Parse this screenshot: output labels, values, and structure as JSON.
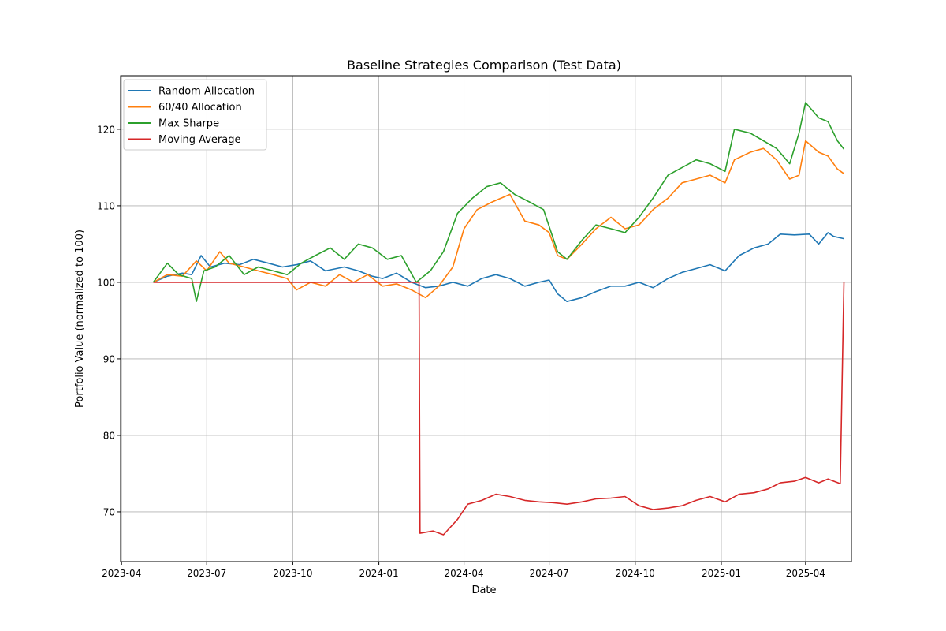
{
  "chart_data": {
    "type": "line",
    "title": "Baseline Strategies Comparison (Test Data)",
    "xlabel": "Date",
    "ylabel": "Portfolio Value (normalized to 100)",
    "xlim": [
      "2023-03-31",
      "2025-05-20"
    ],
    "ylim": [
      63.5,
      127
    ],
    "x_ticks": [
      "2023-04",
      "2023-07",
      "2023-10",
      "2024-01",
      "2024-04",
      "2024-07",
      "2024-10",
      "2025-01",
      "2025-04"
    ],
    "y_ticks": [
      70,
      80,
      90,
      100,
      110,
      120
    ],
    "grid": true,
    "legend": "upper-left",
    "series": [
      {
        "name": "Random Allocation",
        "color": "#1f77b4",
        "points": [
          [
            "2023-05-05",
            100.0
          ],
          [
            "2023-05-20",
            100.8
          ],
          [
            "2023-06-05",
            101.2
          ],
          [
            "2023-06-15",
            101.0
          ],
          [
            "2023-06-25",
            103.5
          ],
          [
            "2023-07-05",
            102.0
          ],
          [
            "2023-07-20",
            102.5
          ],
          [
            "2023-08-05",
            102.3
          ],
          [
            "2023-08-20",
            103.0
          ],
          [
            "2023-09-05",
            102.5
          ],
          [
            "2023-09-20",
            102.0
          ],
          [
            "2023-10-05",
            102.3
          ],
          [
            "2023-10-20",
            102.8
          ],
          [
            "2023-11-05",
            101.5
          ],
          [
            "2023-11-25",
            102.0
          ],
          [
            "2023-12-10",
            101.5
          ],
          [
            "2023-12-25",
            100.8
          ],
          [
            "2024-01-05",
            100.5
          ],
          [
            "2024-01-20",
            101.2
          ],
          [
            "2024-02-05",
            100.0
          ],
          [
            "2024-02-20",
            99.3
          ],
          [
            "2024-03-05",
            99.5
          ],
          [
            "2024-03-20",
            100.0
          ],
          [
            "2024-04-05",
            99.5
          ],
          [
            "2024-04-20",
            100.5
          ],
          [
            "2024-05-05",
            101.0
          ],
          [
            "2024-05-20",
            100.5
          ],
          [
            "2024-06-05",
            99.5
          ],
          [
            "2024-06-20",
            100.0
          ],
          [
            "2024-07-01",
            100.3
          ],
          [
            "2024-07-10",
            98.5
          ],
          [
            "2024-07-20",
            97.5
          ],
          [
            "2024-08-05",
            98.0
          ],
          [
            "2024-08-20",
            98.8
          ],
          [
            "2024-09-05",
            99.5
          ],
          [
            "2024-09-20",
            99.5
          ],
          [
            "2024-10-05",
            100.0
          ],
          [
            "2024-10-20",
            99.3
          ],
          [
            "2024-11-05",
            100.5
          ],
          [
            "2024-11-20",
            101.3
          ],
          [
            "2024-12-05",
            101.8
          ],
          [
            "2024-12-20",
            102.3
          ],
          [
            "2025-01-05",
            101.5
          ],
          [
            "2025-01-20",
            103.5
          ],
          [
            "2025-02-05",
            104.5
          ],
          [
            "2025-02-20",
            105.0
          ],
          [
            "2025-03-05",
            106.3
          ],
          [
            "2025-03-20",
            106.2
          ],
          [
            "2025-04-05",
            106.3
          ],
          [
            "2025-04-15",
            105.0
          ],
          [
            "2025-04-25",
            106.5
          ],
          [
            "2025-05-01",
            106.0
          ],
          [
            "2025-05-12",
            105.7
          ]
        ]
      },
      {
        "name": "60/40 Allocation",
        "color": "#ff7f0e",
        "points": [
          [
            "2023-05-05",
            100.0
          ],
          [
            "2023-05-20",
            101.0
          ],
          [
            "2023-06-05",
            100.8
          ],
          [
            "2023-06-20",
            102.8
          ],
          [
            "2023-07-01",
            101.5
          ],
          [
            "2023-07-15",
            104.0
          ],
          [
            "2023-07-25",
            102.5
          ],
          [
            "2023-08-10",
            102.0
          ],
          [
            "2023-08-25",
            101.5
          ],
          [
            "2023-09-10",
            101.0
          ],
          [
            "2023-09-25",
            100.5
          ],
          [
            "2023-10-05",
            99.0
          ],
          [
            "2023-10-20",
            100.0
          ],
          [
            "2023-11-05",
            99.5
          ],
          [
            "2023-11-20",
            101.0
          ],
          [
            "2023-12-05",
            100.0
          ],
          [
            "2023-12-20",
            101.0
          ],
          [
            "2024-01-05",
            99.5
          ],
          [
            "2024-01-20",
            99.8
          ],
          [
            "2024-02-05",
            99.0
          ],
          [
            "2024-02-20",
            98.0
          ],
          [
            "2024-03-05",
            99.5
          ],
          [
            "2024-03-20",
            102.0
          ],
          [
            "2024-04-01",
            107.0
          ],
          [
            "2024-04-15",
            109.5
          ],
          [
            "2024-05-01",
            110.5
          ],
          [
            "2024-05-20",
            111.5
          ],
          [
            "2024-06-05",
            108.0
          ],
          [
            "2024-06-20",
            107.5
          ],
          [
            "2024-07-01",
            106.5
          ],
          [
            "2024-07-10",
            103.5
          ],
          [
            "2024-07-20",
            103.0
          ],
          [
            "2024-08-05",
            105.0
          ],
          [
            "2024-08-20",
            107.0
          ],
          [
            "2024-09-05",
            108.5
          ],
          [
            "2024-09-20",
            107.0
          ],
          [
            "2024-10-05",
            107.5
          ],
          [
            "2024-10-20",
            109.5
          ],
          [
            "2024-11-05",
            111.0
          ],
          [
            "2024-11-20",
            113.0
          ],
          [
            "2024-12-05",
            113.5
          ],
          [
            "2024-12-20",
            114.0
          ],
          [
            "2025-01-05",
            113.0
          ],
          [
            "2025-01-15",
            116.0
          ],
          [
            "2025-02-01",
            117.0
          ],
          [
            "2025-02-15",
            117.5
          ],
          [
            "2025-03-01",
            116.0
          ],
          [
            "2025-03-15",
            113.5
          ],
          [
            "2025-03-25",
            114.0
          ],
          [
            "2025-04-01",
            118.5
          ],
          [
            "2025-04-15",
            117.0
          ],
          [
            "2025-04-25",
            116.5
          ],
          [
            "2025-05-05",
            114.8
          ],
          [
            "2025-05-12",
            114.2
          ]
        ]
      },
      {
        "name": "Max Sharpe",
        "color": "#2ca02c",
        "points": [
          [
            "2023-05-05",
            100.0
          ],
          [
            "2023-05-20",
            102.5
          ],
          [
            "2023-06-01",
            101.0
          ],
          [
            "2023-06-15",
            100.5
          ],
          [
            "2023-06-20",
            97.5
          ],
          [
            "2023-06-28",
            101.5
          ],
          [
            "2023-07-10",
            102.0
          ],
          [
            "2023-07-25",
            103.5
          ],
          [
            "2023-08-10",
            101.0
          ],
          [
            "2023-08-25",
            102.0
          ],
          [
            "2023-09-10",
            101.5
          ],
          [
            "2023-09-25",
            101.0
          ],
          [
            "2023-10-10",
            102.5
          ],
          [
            "2023-10-25",
            103.5
          ],
          [
            "2023-11-10",
            104.5
          ],
          [
            "2023-11-25",
            103.0
          ],
          [
            "2023-12-10",
            105.0
          ],
          [
            "2023-12-25",
            104.5
          ],
          [
            "2024-01-10",
            103.0
          ],
          [
            "2024-01-25",
            103.5
          ],
          [
            "2024-02-10",
            100.0
          ],
          [
            "2024-02-25",
            101.5
          ],
          [
            "2024-03-10",
            104.0
          ],
          [
            "2024-03-25",
            109.0
          ],
          [
            "2024-04-10",
            111.0
          ],
          [
            "2024-04-25",
            112.5
          ],
          [
            "2024-05-10",
            113.0
          ],
          [
            "2024-05-25",
            111.5
          ],
          [
            "2024-06-10",
            110.5
          ],
          [
            "2024-06-25",
            109.5
          ],
          [
            "2024-07-10",
            104.0
          ],
          [
            "2024-07-20",
            103.0
          ],
          [
            "2024-08-05",
            105.5
          ],
          [
            "2024-08-20",
            107.5
          ],
          [
            "2024-09-05",
            107.0
          ],
          [
            "2024-09-20",
            106.5
          ],
          [
            "2024-10-05",
            108.5
          ],
          [
            "2024-10-20",
            111.0
          ],
          [
            "2024-11-05",
            114.0
          ],
          [
            "2024-11-20",
            115.0
          ],
          [
            "2024-12-05",
            116.0
          ],
          [
            "2024-12-20",
            115.5
          ],
          [
            "2025-01-05",
            114.5
          ],
          [
            "2025-01-15",
            120.0
          ],
          [
            "2025-02-01",
            119.5
          ],
          [
            "2025-02-15",
            118.5
          ],
          [
            "2025-03-01",
            117.5
          ],
          [
            "2025-03-15",
            115.5
          ],
          [
            "2025-03-25",
            119.5
          ],
          [
            "2025-04-01",
            123.5
          ],
          [
            "2025-04-15",
            121.5
          ],
          [
            "2025-04-25",
            121.0
          ],
          [
            "2025-05-05",
            118.5
          ],
          [
            "2025-05-12",
            117.4
          ]
        ]
      },
      {
        "name": "Moving Average",
        "color": "#d62728",
        "points": [
          [
            "2023-05-05",
            100.0
          ],
          [
            "2024-02-13",
            100.0
          ],
          [
            "2024-02-14",
            67.2
          ],
          [
            "2024-02-28",
            67.5
          ],
          [
            "2024-03-10",
            67.0
          ],
          [
            "2024-03-25",
            69.0
          ],
          [
            "2024-04-05",
            71.0
          ],
          [
            "2024-04-20",
            71.5
          ],
          [
            "2024-05-05",
            72.3
          ],
          [
            "2024-05-20",
            72.0
          ],
          [
            "2024-06-05",
            71.5
          ],
          [
            "2024-06-20",
            71.3
          ],
          [
            "2024-07-05",
            71.2
          ],
          [
            "2024-07-20",
            71.0
          ],
          [
            "2024-08-05",
            71.3
          ],
          [
            "2024-08-20",
            71.7
          ],
          [
            "2024-09-05",
            71.8
          ],
          [
            "2024-09-20",
            72.0
          ],
          [
            "2024-10-05",
            70.8
          ],
          [
            "2024-10-20",
            70.3
          ],
          [
            "2024-11-05",
            70.5
          ],
          [
            "2024-11-20",
            70.8
          ],
          [
            "2024-12-05",
            71.5
          ],
          [
            "2024-12-20",
            72.0
          ],
          [
            "2025-01-05",
            71.3
          ],
          [
            "2025-01-20",
            72.3
          ],
          [
            "2025-02-05",
            72.5
          ],
          [
            "2025-02-20",
            73.0
          ],
          [
            "2025-03-05",
            73.8
          ],
          [
            "2025-03-20",
            74.0
          ],
          [
            "2025-04-01",
            74.5
          ],
          [
            "2025-04-15",
            73.8
          ],
          [
            "2025-04-25",
            74.3
          ],
          [
            "2025-05-08",
            73.7
          ],
          [
            "2025-05-12",
            100.0
          ]
        ]
      }
    ]
  }
}
